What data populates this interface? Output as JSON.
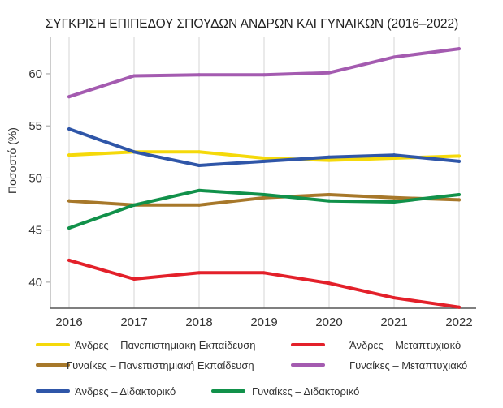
{
  "chart_data": {
    "type": "line",
    "title": "ΣΥΓΚΡΙΣΗ ΕΠΙΠΕΔΟΥ ΣΠΟΥΔΩΝ ΑΝΔΡΩΝ ΚΑΙ ΓΥΝΑΙΚΩΝ (2016–2022)",
    "xlabel": "",
    "ylabel": "Ποσοστό (%)",
    "x": [
      "2016",
      "2017",
      "2018",
      "2019",
      "2020",
      "2021",
      "2022"
    ],
    "ylim": [
      37.5,
      63.5
    ],
    "yticks": [
      "40",
      "45",
      "50",
      "55",
      "60"
    ],
    "ytick_values": [
      40,
      45,
      50,
      55,
      60
    ],
    "grid": "vertical",
    "legend_position": "bottom",
    "series": [
      {
        "name": "Άνδρες – Πανεπιστημιακή Εκπαίδευση",
        "color": "#f5d90a",
        "values": [
          52.2,
          52.5,
          52.5,
          51.9,
          51.7,
          51.9,
          52.1
        ]
      },
      {
        "name": "Άνδρες – Μεταπτυχιακό",
        "color": "#e3202a",
        "values": [
          42.1,
          40.3,
          40.9,
          40.9,
          39.9,
          38.5,
          37.6
        ]
      },
      {
        "name": "Γυναίκες – Πανεπιστημιακή Εκπαίδευση",
        "color": "#a7782a",
        "values": [
          47.8,
          47.4,
          47.4,
          48.1,
          48.4,
          48.1,
          47.9
        ]
      },
      {
        "name": "Γυναίκες – Μεταπτυχιακό",
        "color": "#a45bb0",
        "values": [
          57.8,
          59.8,
          59.9,
          59.9,
          60.1,
          61.6,
          62.4
        ]
      },
      {
        "name": "Άνδρες – Διδακτορικό",
        "color": "#2f56a8",
        "values": [
          54.7,
          52.5,
          51.2,
          51.6,
          52.0,
          52.2,
          51.6
        ]
      },
      {
        "name": "Γυναίκες – Διδακτορικό",
        "color": "#11914a",
        "values": [
          45.2,
          47.4,
          48.8,
          48.4,
          47.8,
          47.7,
          48.4
        ]
      }
    ]
  }
}
